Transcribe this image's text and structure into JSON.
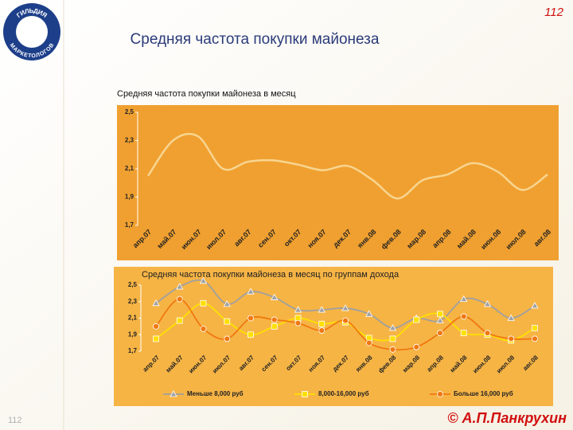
{
  "slide": {
    "page_number": "112",
    "title": "Средняя частота покупки майонеза",
    "footer_number": "112",
    "author": "© А.П.Панкрухин",
    "logo_top": "ГИЛЬДИЯ",
    "logo_bottom": "МАРКЕТОЛОГОВ"
  },
  "chart_data": [
    {
      "type": "line",
      "title": "Средняя частота покупки майонеза в месяц",
      "categories": [
        "апр.07",
        "май.07",
        "июн.07",
        "июл.07",
        "авг.07",
        "сен.07",
        "окт.07",
        "ноя.07",
        "дек.07",
        "янв.08",
        "фев.08",
        "мар.08",
        "апр.08",
        "май.08",
        "июн.08",
        "июл.08",
        "авг.08"
      ],
      "values": [
        2.05,
        2.3,
        2.33,
        2.1,
        2.15,
        2.16,
        2.13,
        2.09,
        2.12,
        2.02,
        1.89,
        2.02,
        2.06,
        2.14,
        2.08,
        1.95,
        2.06
      ],
      "color": "#f8d590",
      "ylim": [
        1.7,
        2.5
      ],
      "yticks": [
        {
          "value": 1.7,
          "label": "1,7"
        },
        {
          "value": 1.9,
          "label": "1,9"
        },
        {
          "value": 2.1,
          "label": "2,1"
        },
        {
          "value": 2.3,
          "label": "2,3"
        },
        {
          "value": 2.5,
          "label": "2,5"
        }
      ]
    },
    {
      "type": "line",
      "title": "Средняя частота покупки майонеза в месяц по группам дохода",
      "categories": [
        "апр.07",
        "май.07",
        "июн.07",
        "июл.07",
        "авг.07",
        "сен.07",
        "окт.07",
        "ноя.07",
        "дек.07",
        "янв.08",
        "фев.08",
        "мар.08",
        "апр.08",
        "май.08",
        "июн.08",
        "июл.08",
        "авг.08"
      ],
      "series": [
        {
          "name": "Меньше 8,000 руб",
          "color": "#a0a0a0",
          "marker": "triangle",
          "values": [
            2.28,
            2.48,
            2.55,
            2.27,
            2.42,
            2.35,
            2.2,
            2.2,
            2.22,
            2.15,
            1.98,
            2.1,
            2.07,
            2.33,
            2.27,
            2.1,
            2.25
          ]
        },
        {
          "name": "8,000-16,000 руб",
          "color": "#ffe000",
          "marker": "square",
          "values": [
            1.85,
            2.07,
            2.28,
            2.06,
            1.9,
            2.0,
            2.1,
            2.03,
            2.05,
            1.86,
            1.85,
            2.08,
            2.15,
            1.92,
            1.9,
            1.83,
            1.98
          ]
        },
        {
          "name": "Больше 16,000 руб",
          "color": "#f07810",
          "marker": "circle",
          "values": [
            2.0,
            2.33,
            1.97,
            1.85,
            2.1,
            2.08,
            2.04,
            1.95,
            2.07,
            1.8,
            1.72,
            1.75,
            1.92,
            2.12,
            1.92,
            1.85,
            1.85
          ]
        }
      ],
      "ylim": [
        1.7,
        2.5
      ],
      "yticks": [
        {
          "value": 1.7,
          "label": "1,7"
        },
        {
          "value": 1.9,
          "label": "1,9"
        },
        {
          "value": 2.1,
          "label": "2,1"
        },
        {
          "value": 2.3,
          "label": "2,3"
        },
        {
          "value": 2.5,
          "label": "2,5"
        }
      ]
    }
  ]
}
